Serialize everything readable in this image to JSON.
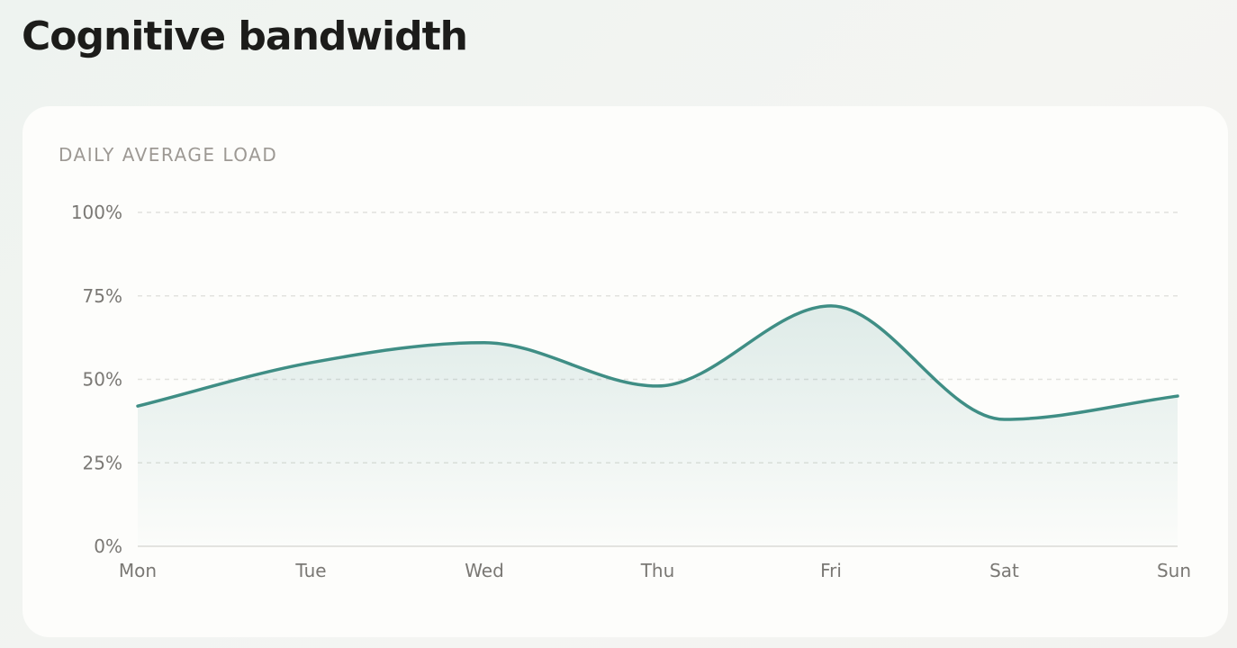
{
  "chart_data": {
    "type": "area",
    "title": "Cognitive bandwidth",
    "subtitle": "DAILY AVERAGE LOAD",
    "categories": [
      "Mon",
      "Tue",
      "Wed",
      "Thu",
      "Fri",
      "Sat",
      "Sun"
    ],
    "values": [
      42,
      55,
      61,
      48,
      72,
      38,
      45
    ],
    "color": "#3f8e85",
    "ylim": [
      0,
      100
    ],
    "yticks": [
      {
        "value": 0,
        "label": "0%"
      },
      {
        "value": 25,
        "label": "25%"
      },
      {
        "value": 50,
        "label": "50%"
      },
      {
        "value": 75,
        "label": "75%"
      },
      {
        "value": 100,
        "label": "100%"
      }
    ],
    "grid": true
  }
}
